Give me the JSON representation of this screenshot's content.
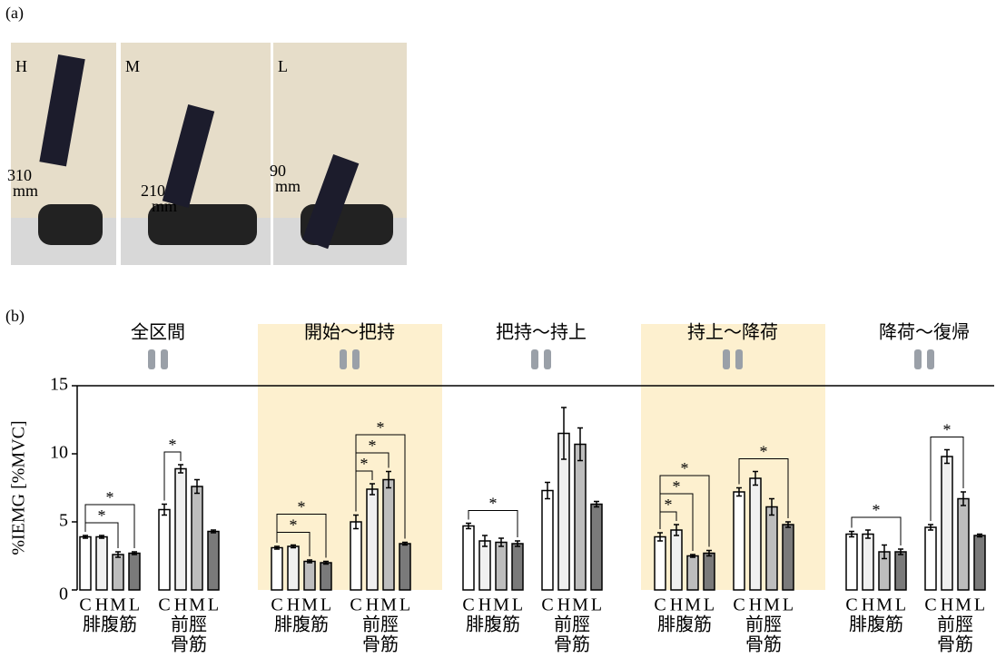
{
  "panel_a": {
    "label": "(a)",
    "photos": [
      {
        "label": "H",
        "length": "310",
        "unit": "mm"
      },
      {
        "label": "M",
        "length": "210",
        "unit": "mm"
      },
      {
        "label": "L",
        "length": "90",
        "unit": "mm"
      }
    ]
  },
  "chart_data": {
    "type": "bar",
    "panel_label": "(b)",
    "ylabel": "%IEMG [%MVC]",
    "ylim": [
      0,
      15
    ],
    "yticks": [
      0,
      5,
      10,
      15
    ],
    "conditions": [
      "C",
      "H",
      "M",
      "L"
    ],
    "colors": [
      "#ffffff",
      "#f0f0f0",
      "#bdbdbd",
      "#7a7a7a"
    ],
    "highlight_color": "#fdf0cf",
    "groups": [
      {
        "phase": "全区間",
        "highlight": false,
        "muscles": [
          {
            "name": [
              "腓腹筋"
            ],
            "values": [
              3.9,
              3.9,
              2.6,
              2.7
            ],
            "errors": [
              0.1,
              0.1,
              0.2,
              0.1
            ],
            "sig": [
              {
                "pair": [
                  0,
                  2
                ],
                "label": "*"
              },
              {
                "pair": [
                  0,
                  3
                ],
                "label": "*"
              }
            ]
          },
          {
            "name": [
              "前脛",
              "骨筋"
            ],
            "values": [
              5.9,
              8.9,
              7.6,
              4.3
            ],
            "errors": [
              0.4,
              0.3,
              0.5,
              0.1
            ],
            "sig": [
              {
                "pair": [
                  0,
                  1
                ],
                "label": "*"
              }
            ]
          }
        ]
      },
      {
        "phase": "開始〜把持",
        "highlight": true,
        "muscles": [
          {
            "name": [
              "腓腹筋"
            ],
            "values": [
              3.1,
              3.2,
              2.1,
              2.0
            ],
            "errors": [
              0.1,
              0.1,
              0.1,
              0.1
            ],
            "sig": [
              {
                "pair": [
                  0,
                  2
                ],
                "label": "*"
              },
              {
                "pair": [
                  0,
                  3
                ],
                "label": "*"
              }
            ]
          },
          {
            "name": [
              "前脛",
              "骨筋"
            ],
            "values": [
              5.0,
              7.4,
              8.1,
              3.4
            ],
            "errors": [
              0.5,
              0.4,
              0.6,
              0.1
            ],
            "sig": [
              {
                "pair": [
                  0,
                  1
                ],
                "label": "*"
              },
              {
                "pair": [
                  0,
                  2
                ],
                "label": "*"
              },
              {
                "pair": [
                  0,
                  3
                ],
                "label": "*"
              }
            ]
          }
        ]
      },
      {
        "phase": "把持〜持上",
        "highlight": false,
        "muscles": [
          {
            "name": [
              "腓腹筋"
            ],
            "values": [
              4.7,
              3.6,
              3.5,
              3.4
            ],
            "errors": [
              0.2,
              0.4,
              0.3,
              0.2
            ],
            "sig": [
              {
                "pair": [
                  0,
                  3
                ],
                "label": "*"
              }
            ]
          },
          {
            "name": [
              "前脛",
              "骨筋"
            ],
            "values": [
              7.3,
              11.5,
              10.7,
              6.3
            ],
            "errors": [
              0.6,
              1.9,
              1.2,
              0.2
            ],
            "sig": []
          }
        ]
      },
      {
        "phase": "持上〜降荷",
        "highlight": true,
        "muscles": [
          {
            "name": [
              "腓腹筋"
            ],
            "values": [
              3.9,
              4.4,
              2.5,
              2.7
            ],
            "errors": [
              0.3,
              0.4,
              0.1,
              0.2
            ],
            "sig": [
              {
                "pair": [
                  0,
                  1
                ],
                "label": "*"
              },
              {
                "pair": [
                  0,
                  2
                ],
                "label": "*"
              },
              {
                "pair": [
                  0,
                  3
                ],
                "label": "*"
              }
            ]
          },
          {
            "name": [
              "前脛",
              "骨筋"
            ],
            "values": [
              7.2,
              8.2,
              6.1,
              4.8
            ],
            "errors": [
              0.3,
              0.5,
              0.6,
              0.2
            ],
            "sig": [
              {
                "pair": [
                  0,
                  3
                ],
                "label": "*"
              }
            ]
          }
        ]
      },
      {
        "phase": "降荷〜復帰",
        "highlight": false,
        "muscles": [
          {
            "name": [
              "腓腹筋"
            ],
            "values": [
              4.1,
              4.1,
              2.8,
              2.8
            ],
            "errors": [
              0.2,
              0.3,
              0.5,
              0.2
            ],
            "sig": [
              {
                "pair": [
                  0,
                  3
                ],
                "label": "*"
              }
            ]
          },
          {
            "name": [
              "前脛",
              "骨筋"
            ],
            "values": [
              4.6,
              9.8,
              6.7,
              4.0
            ],
            "errors": [
              0.2,
              0.5,
              0.5,
              0.1
            ],
            "sig": [
              {
                "pair": [
                  0,
                  2
                ],
                "label": "*"
              }
            ]
          }
        ]
      }
    ]
  }
}
